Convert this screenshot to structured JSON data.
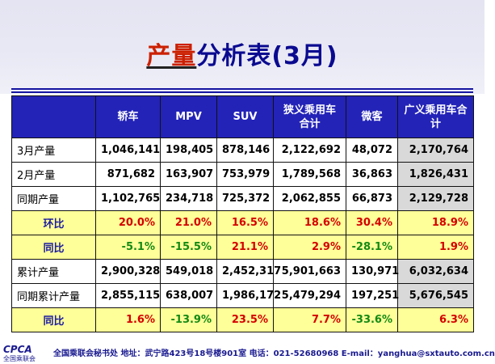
{
  "title": {
    "highlight": "产量",
    "rest": "分析表(3月)"
  },
  "colors": {
    "title": "#0a0a90",
    "title_highlight": "#cc2000",
    "header_bg": "#2323b8",
    "ratio_bg": "#ffff99",
    "positive": "#d40000",
    "negative": "#138a13",
    "total_bg": "#d9d9d9"
  },
  "table": {
    "headers": [
      "轿车",
      "MPV",
      "SUV",
      "狭义乘用车合计",
      "微客",
      "广义乘用车合计"
    ],
    "rows": [
      {
        "label": "3月产量",
        "type": "plain",
        "values": [
          "1,046,141",
          "198,405",
          "878,146",
          "2,122,692",
          "48,072",
          "2,170,764"
        ]
      },
      {
        "label": "2月产量",
        "type": "plain",
        "values": [
          "871,682",
          "163,907",
          "753,979",
          "1,789,568",
          "36,863",
          "1,826,431"
        ]
      },
      {
        "label": "同期产量",
        "type": "plain",
        "values": [
          "1,102,765",
          "234,718",
          "725,372",
          "2,062,855",
          "66,873",
          "2,129,728"
        ]
      },
      {
        "label": "环比",
        "type": "ratio",
        "values": [
          "20.0%",
          "21.0%",
          "16.5%",
          "18.6%",
          "30.4%",
          "18.9%"
        ]
      },
      {
        "label": "同比",
        "type": "ratio",
        "values": [
          "-5.1%",
          "-15.5%",
          "21.1%",
          "2.9%",
          "-28.1%",
          "1.9%"
        ]
      },
      {
        "label": "累计产量",
        "type": "plain",
        "values": [
          "2,900,328",
          "549,018",
          "2,452,317",
          "5,901,663",
          "130,971",
          "6,032,634"
        ]
      },
      {
        "label": "同期累计产量",
        "type": "plain",
        "values": [
          "2,855,115",
          "638,007",
          "1,986,172",
          "5,479,294",
          "197,251",
          "5,676,545"
        ]
      },
      {
        "label": "同比",
        "type": "ratio",
        "values": [
          "1.6%",
          "-13.9%",
          "23.5%",
          "7.7%",
          "-33.6%",
          "6.3%"
        ]
      }
    ]
  },
  "footer": {
    "logo_text": "CPCA",
    "logo_sub": "全国乘联会",
    "text": "全国乘联会秘书处  地址：武宁路423号18号楼901室    电话：021-52680968   E-mail：yanghua@sxtauto.com.cn"
  }
}
